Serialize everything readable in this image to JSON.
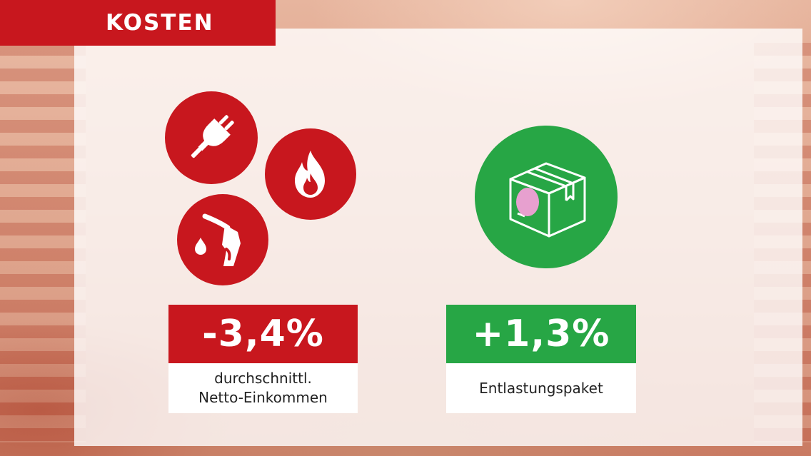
{
  "header": {
    "title": "KOSTEN"
  },
  "icons": {
    "plug": "plug-icon",
    "flame": "flame-icon",
    "fuel": "fuel-pump-icon",
    "package": "package-icon"
  },
  "left": {
    "value": "-3,4%",
    "label_line1": "durchschnittl.",
    "label_line2": "Netto-Einkommen"
  },
  "right": {
    "value": "+1,3%",
    "label": "Entlastungspaket"
  },
  "colors": {
    "red": "#c8171e",
    "green": "#27a645",
    "white": "#ffffff"
  }
}
